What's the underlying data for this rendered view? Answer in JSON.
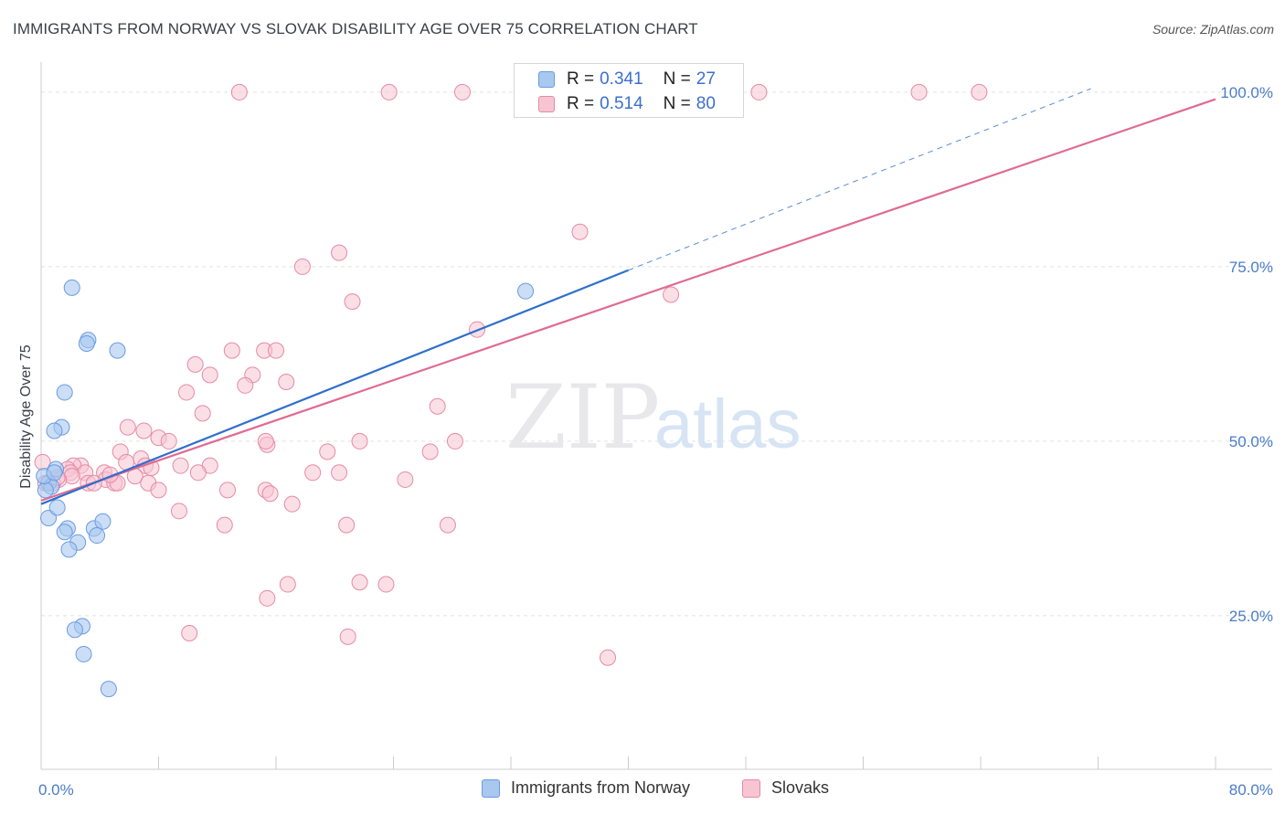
{
  "header": {
    "title": "IMMIGRANTS FROM NORWAY VS SLOVAK DISABILITY AGE OVER 75 CORRELATION CHART",
    "source": "Source: ZipAtlas.com"
  },
  "watermark": {
    "zip": "ZIP",
    "atlas": "atlas"
  },
  "stats": [
    {
      "r_label": "R =",
      "r_value": "0.341",
      "n_label": "N =",
      "n_value": "27",
      "color": "#a8c8f0",
      "border": "#6a9be0"
    },
    {
      "r_label": "R =",
      "r_value": "0.514",
      "n_label": "N =",
      "n_value": "80",
      "color": "#f7c4d4",
      "border": "#e58aa6"
    }
  ],
  "legend": {
    "items": [
      {
        "label": "Immigrants from Norway",
        "color": "#a8c8f0",
        "border": "#6a9be0"
      },
      {
        "label": "Slovaks",
        "color": "#f7c4d4",
        "border": "#e58aa6"
      }
    ]
  },
  "chart_data": {
    "type": "scatter",
    "title": "IMMIGRANTS FROM NORWAY VS SLOVAK DISABILITY AGE OVER 75 CORRELATION CHART",
    "xlabel": "",
    "ylabel": "Disability Age Over 75",
    "xlim": [
      0,
      80
    ],
    "ylim": [
      3,
      103
    ],
    "x_tick_labels": [
      "0.0%",
      "80.0%"
    ],
    "y_ticks": [
      25,
      50,
      75,
      100
    ],
    "y_tick_labels": [
      "25.0%",
      "50.0%",
      "75.0%",
      "100.0%"
    ],
    "grid": true,
    "series": [
      {
        "name": "Immigrants from Norway",
        "color": "#a8c8f0",
        "stroke": "#6a9be0",
        "line_color": "#2f6fcc",
        "trend": {
          "x0": 0,
          "y0": 41,
          "x1": 40,
          "y1": 74.5,
          "dash_to_x": 71.5,
          "dash_to_y": 100.5
        },
        "points": [
          [
            2.1,
            72
          ],
          [
            3.2,
            64.5
          ],
          [
            3.1,
            64
          ],
          [
            5.2,
            63
          ],
          [
            1.6,
            57
          ],
          [
            1.4,
            52
          ],
          [
            0.9,
            51.5
          ],
          [
            1.0,
            46
          ],
          [
            0.5,
            44
          ],
          [
            0.7,
            43.5
          ],
          [
            0.3,
            43
          ],
          [
            0.5,
            39
          ],
          [
            1.1,
            40.5
          ],
          [
            1.8,
            37.5
          ],
          [
            3.6,
            37.5
          ],
          [
            4.2,
            38.5
          ],
          [
            1.6,
            37
          ],
          [
            3.8,
            36.5
          ],
          [
            2.5,
            35.5
          ],
          [
            1.9,
            34.5
          ],
          [
            2.8,
            23.5
          ],
          [
            2.3,
            23
          ],
          [
            2.9,
            19.5
          ],
          [
            4.6,
            14.5
          ],
          [
            33.0,
            71.5
          ],
          [
            0.2,
            45
          ],
          [
            0.9,
            45.5
          ]
        ]
      },
      {
        "name": "Slovaks",
        "color": "#f7c4d4",
        "stroke": "#e58aa6",
        "line_color": "#e06a93",
        "trend": {
          "x0": 0,
          "y0": 41.5,
          "x1": 80,
          "y1": 99
        },
        "points": [
          [
            13.5,
            100
          ],
          [
            23.7,
            100
          ],
          [
            28.7,
            100
          ],
          [
            48.9,
            100
          ],
          [
            59.8,
            100
          ],
          [
            63.9,
            100
          ],
          [
            36.7,
            80
          ],
          [
            20.3,
            77
          ],
          [
            17.8,
            75
          ],
          [
            42.9,
            71
          ],
          [
            21.2,
            70
          ],
          [
            29.7,
            66
          ],
          [
            13.0,
            63
          ],
          [
            15.2,
            63
          ],
          [
            16.0,
            63
          ],
          [
            10.5,
            61
          ],
          [
            11.5,
            59.5
          ],
          [
            14.4,
            59.5
          ],
          [
            16.7,
            58.5
          ],
          [
            13.9,
            58
          ],
          [
            9.9,
            57
          ],
          [
            27.0,
            55
          ],
          [
            11.0,
            54
          ],
          [
            5.9,
            52
          ],
          [
            7.0,
            51.5
          ],
          [
            8.0,
            50.5
          ],
          [
            8.7,
            50
          ],
          [
            21.7,
            50
          ],
          [
            15.4,
            49.5
          ],
          [
            28.2,
            50
          ],
          [
            15.3,
            50
          ],
          [
            5.4,
            48.5
          ],
          [
            19.5,
            48.5
          ],
          [
            26.5,
            48.5
          ],
          [
            6.8,
            47.5
          ],
          [
            5.8,
            47
          ],
          [
            2.7,
            46.5
          ],
          [
            2.2,
            46.5
          ],
          [
            1.8,
            46
          ],
          [
            7.1,
            46.5
          ],
          [
            9.5,
            46.5
          ],
          [
            11.5,
            46.5
          ],
          [
            2.0,
            45.5
          ],
          [
            3.0,
            45.5
          ],
          [
            4.3,
            45.5
          ],
          [
            10.7,
            45.5
          ],
          [
            18.5,
            45.5
          ],
          [
            20.3,
            45.5
          ],
          [
            2.1,
            45
          ],
          [
            6.4,
            45
          ],
          [
            1.2,
            44.5
          ],
          [
            24.8,
            44.5
          ],
          [
            4.4,
            44.5
          ],
          [
            0.3,
            44
          ],
          [
            0.8,
            44
          ],
          [
            3.2,
            44
          ],
          [
            3.6,
            44
          ],
          [
            5.0,
            44
          ],
          [
            5.2,
            44
          ],
          [
            7.3,
            44
          ],
          [
            8.0,
            43
          ],
          [
            12.7,
            43
          ],
          [
            15.3,
            43
          ],
          [
            9.4,
            40
          ],
          [
            12.5,
            38
          ],
          [
            17.1,
            41
          ],
          [
            20.8,
            38
          ],
          [
            27.7,
            38
          ],
          [
            15.6,
            42.5
          ],
          [
            16.8,
            29.5
          ],
          [
            21.7,
            29.8
          ],
          [
            23.5,
            29.5
          ],
          [
            15.4,
            27.5
          ],
          [
            10.1,
            22.5
          ],
          [
            20.9,
            22
          ],
          [
            38.6,
            19
          ],
          [
            0.1,
            47
          ],
          [
            1.1,
            44.8
          ],
          [
            7.5,
            46.2
          ],
          [
            4.7,
            45.2
          ]
        ]
      }
    ]
  }
}
